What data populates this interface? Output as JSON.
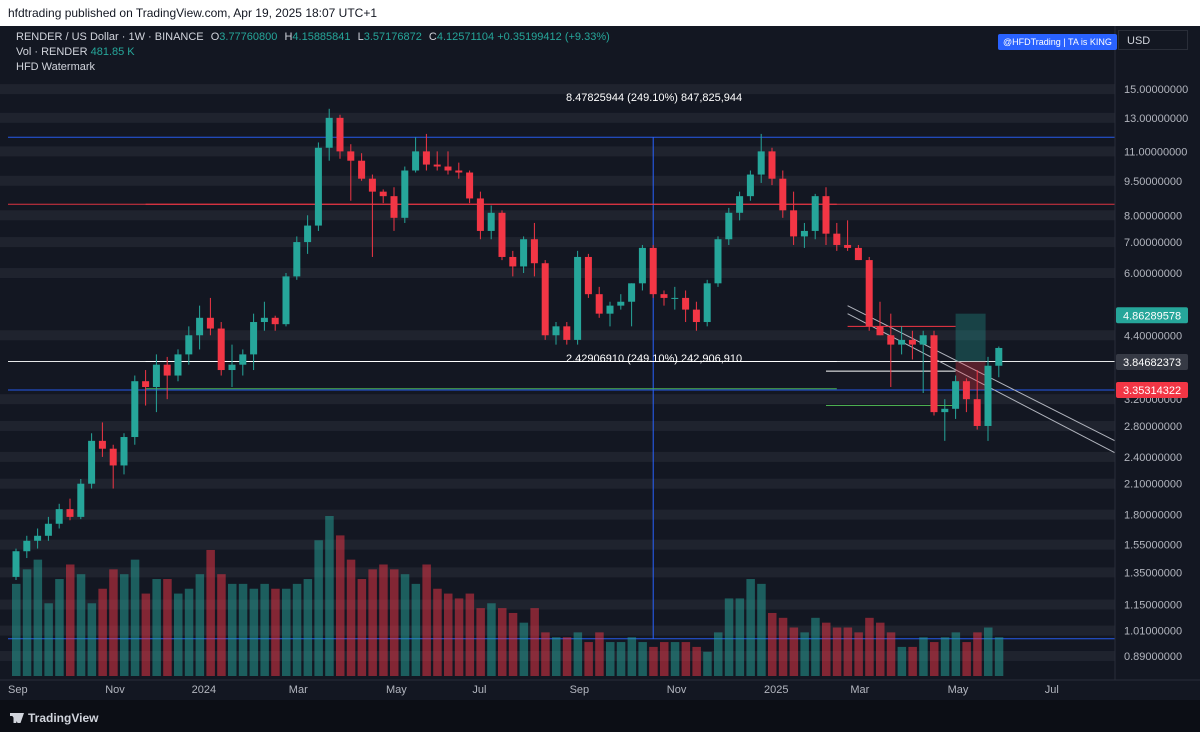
{
  "header": {
    "publish_line": "hfdtrading published on TradingView.com, Apr 19, 2025 18:07 UTC+1"
  },
  "legend": {
    "symbol": "RENDER / US Dollar · 1W · BINANCE",
    "o_label": "O",
    "o": "3.77760800",
    "h_label": "H",
    "h": "4.15885841",
    "l_label": "L",
    "l": "3.57176872",
    "c_label": "C",
    "c": "4.12571104",
    "change": "+0.35199412 (+9.33%)",
    "vol_label": "Vol · RENDER",
    "vol_value": "481.85 K",
    "indicator": "HFD Watermark"
  },
  "badge": "@HFDTrading | TA is KING",
  "currency": "USD",
  "footer": {
    "brand": "TradingView"
  },
  "colors": {
    "bg": "#131722",
    "up": "#26a69a",
    "down": "#f23645",
    "blue": "#2962ff",
    "grid_band": "#2a2e39"
  },
  "chart_data": {
    "type": "candlestick",
    "timeframe": "1W",
    "y_scale": "log",
    "ylim": [
      0.83,
      16.5
    ],
    "y_ticks": [
      "15.00000000",
      "13.00000000",
      "11.00000000",
      "9.50000000",
      "8.00000000",
      "7.00000000",
      "6.00000000",
      "4.40000000",
      "3.20000000",
      "2.80000000",
      "2.40000000",
      "2.10000000",
      "1.80000000",
      "1.55000000",
      "1.35000000",
      "1.15000000",
      "1.01000000",
      "0.89000000"
    ],
    "x_start": "2023-09-04",
    "x_labels": [
      {
        "label": "Sep",
        "date": "2023-09-04"
      },
      {
        "label": "Nov",
        "date": "2023-11-06"
      },
      {
        "label": "2024",
        "date": "2024-01-01"
      },
      {
        "label": "Mar",
        "date": "2024-03-04"
      },
      {
        "label": "May",
        "date": "2024-05-06"
      },
      {
        "label": "Jul",
        "date": "2024-07-01"
      },
      {
        "label": "Sep",
        "date": "2024-09-02"
      },
      {
        "label": "Nov",
        "date": "2024-11-04"
      },
      {
        "label": "2025",
        "date": "2025-01-06"
      },
      {
        "label": "Mar",
        "date": "2025-03-03"
      },
      {
        "label": "May",
        "date": "2025-05-05"
      },
      {
        "label": "Jul",
        "date": "2025-07-07"
      }
    ],
    "candles": [
      [
        1.32,
        1.52,
        1.3,
        1.5
      ],
      [
        1.5,
        1.62,
        1.45,
        1.58
      ],
      [
        1.58,
        1.68,
        1.52,
        1.62
      ],
      [
        1.62,
        1.78,
        1.58,
        1.72
      ],
      [
        1.72,
        1.9,
        1.68,
        1.85
      ],
      [
        1.85,
        1.95,
        1.75,
        1.78
      ],
      [
        1.78,
        2.15,
        1.76,
        2.1
      ],
      [
        2.1,
        2.7,
        2.05,
        2.6
      ],
      [
        2.6,
        2.85,
        2.4,
        2.5
      ],
      [
        2.5,
        2.55,
        2.05,
        2.3
      ],
      [
        2.3,
        2.7,
        2.2,
        2.65
      ],
      [
        2.65,
        3.6,
        2.55,
        3.5
      ],
      [
        3.5,
        3.7,
        3.1,
        3.4
      ],
      [
        3.4,
        4.0,
        3.0,
        3.8
      ],
      [
        3.8,
        3.95,
        3.2,
        3.6
      ],
      [
        3.6,
        4.1,
        3.5,
        4.0
      ],
      [
        4.0,
        4.6,
        3.8,
        4.4
      ],
      [
        4.4,
        5.1,
        4.1,
        4.8
      ],
      [
        4.8,
        5.3,
        4.4,
        4.55
      ],
      [
        4.55,
        4.7,
        3.6,
        3.7
      ],
      [
        3.7,
        4.2,
        3.4,
        3.8
      ],
      [
        3.8,
        4.1,
        3.6,
        4.0
      ],
      [
        4.0,
        4.9,
        3.7,
        4.7
      ],
      [
        4.7,
        5.2,
        4.5,
        4.8
      ],
      [
        4.8,
        4.85,
        4.5,
        4.65
      ],
      [
        4.65,
        6.0,
        4.6,
        5.9
      ],
      [
        5.9,
        7.2,
        5.8,
        7.0
      ],
      [
        7.0,
        8.0,
        6.6,
        7.6
      ],
      [
        7.6,
        11.5,
        7.4,
        11.2
      ],
      [
        11.2,
        13.6,
        10.5,
        13.0
      ],
      [
        13.0,
        13.2,
        10.6,
        11.0
      ],
      [
        11.0,
        11.4,
        8.6,
        10.5
      ],
      [
        10.5,
        10.9,
        9.5,
        9.6
      ],
      [
        9.6,
        9.8,
        6.5,
        9.0
      ],
      [
        9.0,
        9.1,
        8.5,
        8.8
      ],
      [
        8.8,
        9.2,
        7.4,
        7.9
      ],
      [
        7.9,
        10.2,
        7.7,
        10.0
      ],
      [
        10.0,
        11.8,
        9.9,
        11.0
      ],
      [
        11.0,
        12.0,
        10.0,
        10.3
      ],
      [
        10.3,
        11.0,
        10.0,
        10.2
      ],
      [
        10.2,
        11.0,
        9.8,
        10.0
      ],
      [
        10.0,
        10.4,
        9.6,
        9.9
      ],
      [
        9.9,
        10.0,
        8.5,
        8.7
      ],
      [
        8.7,
        9.0,
        7.1,
        7.4
      ],
      [
        7.4,
        8.4,
        7.1,
        8.1
      ],
      [
        8.1,
        8.2,
        6.4,
        6.5
      ],
      [
        6.5,
        6.7,
        5.9,
        6.2
      ],
      [
        6.2,
        7.2,
        6.0,
        7.1
      ],
      [
        7.1,
        7.7,
        5.9,
        6.3
      ],
      [
        6.3,
        6.4,
        4.3,
        4.4
      ],
      [
        4.4,
        4.7,
        4.2,
        4.6
      ],
      [
        4.6,
        4.7,
        4.2,
        4.3
      ],
      [
        4.3,
        6.7,
        4.2,
        6.5
      ],
      [
        6.5,
        6.6,
        5.3,
        5.4
      ],
      [
        5.4,
        5.6,
        4.8,
        4.9
      ],
      [
        4.9,
        5.2,
        4.6,
        5.1
      ],
      [
        5.1,
        5.4,
        5.0,
        5.2
      ],
      [
        5.2,
        5.7,
        4.6,
        5.7
      ],
      [
        5.7,
        6.9,
        5.5,
        6.8
      ],
      [
        6.8,
        6.9,
        5.3,
        5.4
      ],
      [
        5.4,
        5.5,
        5.1,
        5.3
      ],
      [
        5.3,
        5.6,
        5.0,
        5.3
      ],
      [
        5.3,
        5.5,
        4.7,
        5.0
      ],
      [
        5.0,
        5.2,
        4.5,
        4.7
      ],
      [
        4.7,
        5.8,
        4.6,
        5.7
      ],
      [
        5.7,
        7.2,
        5.6,
        7.1
      ],
      [
        7.1,
        8.3,
        6.9,
        8.1
      ],
      [
        8.1,
        9.0,
        7.8,
        8.8
      ],
      [
        8.8,
        10.0,
        8.6,
        9.8
      ],
      [
        9.8,
        12.0,
        9.4,
        11.0
      ],
      [
        11.0,
        11.2,
        9.3,
        9.6
      ],
      [
        9.6,
        10.0,
        7.9,
        8.2
      ],
      [
        8.2,
        9.0,
        6.9,
        7.2
      ],
      [
        7.2,
        7.7,
        6.8,
        7.4
      ],
      [
        7.4,
        8.9,
        7.1,
        8.8
      ],
      [
        8.8,
        9.2,
        6.9,
        7.3
      ],
      [
        7.3,
        7.7,
        6.7,
        6.9
      ],
      [
        6.9,
        7.8,
        6.7,
        6.8
      ],
      [
        6.8,
        6.9,
        6.4,
        6.4
      ],
      [
        6.4,
        6.5,
        4.5,
        4.6
      ],
      [
        4.6,
        5.2,
        4.4,
        4.4
      ],
      [
        4.4,
        4.9,
        3.4,
        4.2
      ],
      [
        4.2,
        4.6,
        4.0,
        4.3
      ],
      [
        4.3,
        4.5,
        3.9,
        4.2
      ],
      [
        4.2,
        4.5,
        3.3,
        4.4
      ],
      [
        4.4,
        4.5,
        2.95,
        3.0
      ],
      [
        3.0,
        3.2,
        2.6,
        3.05
      ],
      [
        3.05,
        3.6,
        2.9,
        3.5
      ],
      [
        3.5,
        3.55,
        3.0,
        3.2
      ],
      [
        3.2,
        3.7,
        2.75,
        2.8
      ],
      [
        2.8,
        3.95,
        2.6,
        3.78
      ],
      [
        3.78,
        4.16,
        3.57,
        4.13
      ]
    ],
    "volume": [
      19,
      22,
      24,
      15,
      20,
      23,
      21,
      15,
      18,
      22,
      21,
      24,
      17,
      20,
      20,
      17,
      18,
      21,
      26,
      21,
      19,
      19,
      18,
      19,
      18,
      18,
      19,
      20,
      28,
      33,
      29,
      24,
      20,
      22,
      23,
      22,
      21,
      19,
      23,
      18,
      17,
      16,
      17,
      14,
      15,
      14,
      13,
      11,
      14,
      9,
      8,
      8,
      9,
      7,
      9,
      7,
      7,
      8,
      7,
      6,
      7,
      7,
      7,
      6,
      5,
      9,
      16,
      16,
      20,
      19,
      13,
      12,
      10,
      9,
      12,
      11,
      10,
      10,
      9,
      12,
      11,
      9,
      6,
      6,
      8,
      7,
      8,
      9,
      7,
      9,
      10,
      8
    ],
    "annotations": {
      "upper_measure": "8.47825944 (249.10%) 847,825,944",
      "lower_measure": "2.42906910 (249.10%) 242,906,910"
    },
    "horizontal_levels": [
      {
        "value": 11.8,
        "color": "#2962ff"
      },
      {
        "value": 8.45,
        "color": "#f23645"
      },
      {
        "value": 3.86,
        "color": "#ffffff"
      },
      {
        "value": 3.35,
        "color": "#2962ff"
      },
      {
        "value": 0.97,
        "color": "#2962ff"
      }
    ],
    "price_labels": [
      {
        "value": "4.86289578",
        "color": "#26a69a"
      },
      {
        "value": "3.84682373",
        "color": "#363a45"
      },
      {
        "value": "3.35314322",
        "color": "#f23645"
      }
    ]
  }
}
